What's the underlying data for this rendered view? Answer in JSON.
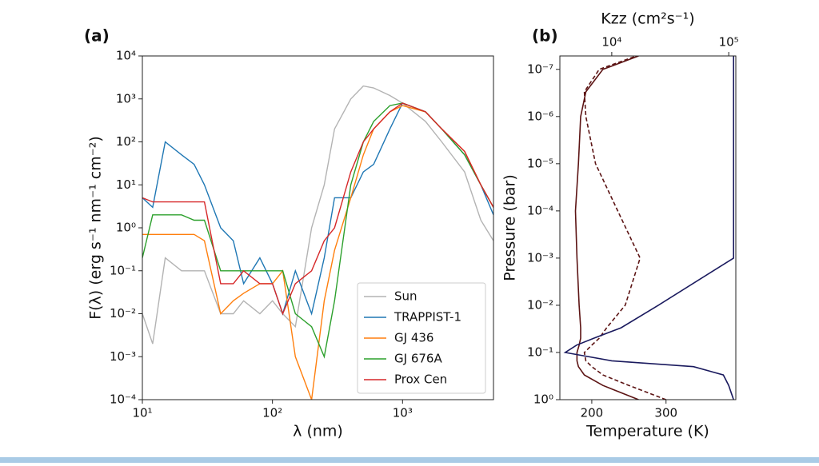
{
  "chart_data": [
    {
      "type": "line",
      "panel_label": "(a)",
      "x_label": "λ (nm)",
      "y_label": "F(λ) (erg s⁻¹ nm⁻¹ cm⁻²)",
      "x_log": true,
      "y_log": true,
      "xlim": [
        10,
        5000
      ],
      "ylim": [
        0.0001,
        10000
      ],
      "xticks": [
        {
          "value": 10,
          "label": "10¹"
        },
        {
          "value": 100,
          "label": "10²"
        },
        {
          "value": 1000,
          "label": "10³"
        }
      ],
      "yticks": [
        {
          "value": 0.0001,
          "label": "10⁻⁴"
        },
        {
          "value": 0.001,
          "label": "10⁻³"
        },
        {
          "value": 0.01,
          "label": "10⁻²"
        },
        {
          "value": 0.1,
          "label": "10⁻¹"
        },
        {
          "value": 1,
          "label": "10⁰"
        },
        {
          "value": 10,
          "label": "10¹"
        },
        {
          "value": 100,
          "label": "10²"
        },
        {
          "value": 1000,
          "label": "10³"
        },
        {
          "value": 10000,
          "label": "10⁴"
        }
      ],
      "legend": "lower right",
      "x": [
        10,
        12,
        15,
        20,
        25,
        30,
        40,
        50,
        60,
        80,
        100,
        120,
        150,
        200,
        250,
        300,
        400,
        500,
        600,
        800,
        1000,
        1500,
        2000,
        3000,
        4000,
        5000
      ],
      "series": [
        {
          "name": "Sun",
          "color": "#b3b3b3",
          "values": [
            0.01,
            0.002,
            0.2,
            0.1,
            0.1,
            0.1,
            0.01,
            0.01,
            0.02,
            0.01,
            0.02,
            0.01,
            0.005,
            1,
            10,
            200,
            1000,
            2000,
            1800,
            1200,
            800,
            300,
            100,
            20,
            1.5,
            0.5
          ]
        },
        {
          "name": "TRAPPIST-1",
          "color": "#1f77b4",
          "values": [
            5,
            3,
            100,
            50,
            30,
            10,
            1,
            0.5,
            0.05,
            0.2,
            0.05,
            0.01,
            0.1,
            0.01,
            0.2,
            5,
            5,
            20,
            30,
            200,
            800,
            500,
            200,
            50,
            10,
            2
          ]
        },
        {
          "name": "GJ 436",
          "color": "#ff7f0e",
          "values": [
            0.7,
            0.7,
            0.7,
            0.7,
            0.7,
            0.5,
            0.01,
            0.02,
            0.03,
            0.05,
            0.05,
            0.1,
            0.001,
            0.0001,
            0.02,
            0.3,
            5,
            50,
            200,
            500,
            700,
            500,
            200,
            60,
            10,
            3
          ]
        },
        {
          "name": "GJ 676A",
          "color": "#2ca02c",
          "values": [
            0.2,
            2,
            2,
            2,
            1.5,
            1.5,
            0.1,
            0.1,
            0.1,
            0.1,
            0.1,
            0.1,
            0.01,
            0.005,
            0.001,
            0.02,
            10,
            100,
            300,
            700,
            800,
            500,
            200,
            50,
            10,
            3
          ]
        },
        {
          "name": "Prox Cen",
          "color": "#d62728",
          "values": [
            5,
            4,
            4,
            4,
            4,
            4,
            0.05,
            0.05,
            0.1,
            0.05,
            0.05,
            0.01,
            0.05,
            0.1,
            0.5,
            1,
            20,
            100,
            200,
            500,
            800,
            500,
            200,
            60,
            10,
            3
          ]
        }
      ]
    },
    {
      "type": "profile",
      "panel_label": "(b)",
      "x_label": "Temperature (K)",
      "x2_label": "Kzz (cm²s⁻¹)",
      "y_label": "Pressure (bar)",
      "y_log": true,
      "x2_log": true,
      "xlim": [
        157,
        394
      ],
      "x2lim": [
        3600,
        115000
      ],
      "ylim": [
        1,
        5.2e-08
      ],
      "xticks": [
        200,
        300
      ],
      "x2ticks": [
        {
          "value": 10000,
          "label": "10⁴"
        },
        {
          "value": 100000,
          "label": "10⁵"
        }
      ],
      "yticks": [
        {
          "value": 1,
          "label": "10⁰"
        },
        {
          "value": 0.1,
          "label": "10⁻¹"
        },
        {
          "value": 0.01,
          "label": "10⁻²"
        },
        {
          "value": 0.001,
          "label": "10⁻³"
        },
        {
          "value": 0.0001,
          "label": "10⁻⁴"
        },
        {
          "value": 1e-05,
          "label": "10⁻⁵"
        },
        {
          "value": 1e-06,
          "label": "10⁻⁶"
        },
        {
          "value": 1e-07,
          "label": "10⁻⁷"
        }
      ],
      "y": [
        1,
        0.5,
        0.3,
        0.2,
        0.15,
        0.1,
        0.07,
        0.05,
        0.03,
        0.01,
        0.001,
        0.0001,
        1e-05,
        1e-06,
        3e-07,
        1e-07,
        5.2e-08
      ],
      "series": [
        {
          "color": "#5c1414",
          "dash": false,
          "values": [
            263,
            215,
            190,
            182,
            180,
            180,
            183,
            185,
            185,
            183,
            180,
            178,
            182,
            185,
            192,
            215,
            263
          ]
        },
        {
          "color": "#5c1414",
          "dash": true,
          "values": [
            300,
            250,
            215,
            200,
            192,
            190,
            200,
            210,
            220,
            245,
            265,
            235,
            205,
            192,
            190,
            210,
            260
          ]
        },
        {
          "color": "#1a1a5e",
          "dash": false,
          "axis": "x2",
          "values": [
            110000,
            100000,
            90000,
            50000,
            10000,
            4000,
            5000,
            7000,
            12000,
            25000,
            110000,
            110000,
            110000,
            110000,
            110000,
            110000,
            110000
          ]
        }
      ]
    }
  ]
}
